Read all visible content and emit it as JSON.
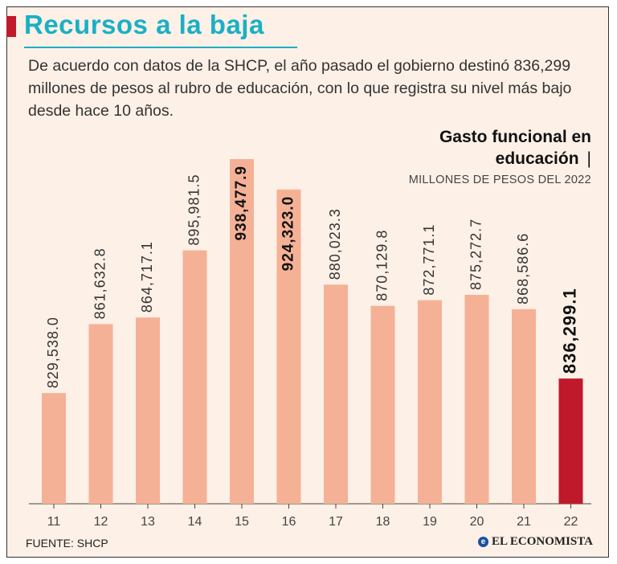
{
  "header": {
    "title": "Recursos a la baja",
    "subtitle": "De acuerdo con datos de la SHCP, el año pasado el gobierno destinó 836,299 millones de pesos al rubro de educación, con lo que registra su nivel más bajo desde hace 10 años."
  },
  "chart_title": {
    "line1": "Gasto funcional en",
    "line2": "educación",
    "separator": "|",
    "units": "MILLONES DE PESOS DEL 2022"
  },
  "footer": {
    "source": "FUENTE: SHCP",
    "logo": "EL ECONOMISTA"
  },
  "colors": {
    "accent": "#1ab0c4",
    "bar": "#f5b196",
    "highlight": "#c0192b",
    "background": "#fdf0e6"
  },
  "chart_data": {
    "type": "bar",
    "title": "Gasto funcional en educación",
    "ylabel": "Millones de pesos del 2022",
    "xlabel": "",
    "categories": [
      "11",
      "12",
      "13",
      "14",
      "15",
      "16",
      "17",
      "18",
      "19",
      "20",
      "21",
      "22"
    ],
    "values": [
      829538.0,
      861632.8,
      864717.1,
      895981.5,
      938477.9,
      924323.0,
      880023.3,
      870129.8,
      872771.1,
      875272.7,
      868586.6,
      836299.1
    ],
    "labels": [
      "829,538.0",
      "861,632.8",
      "864,717.1",
      "895,981.5",
      "938,477.9",
      "924,323.0",
      "880,023.3",
      "870,129.8",
      "872,771.1",
      "875,272.7",
      "868,586.6",
      "836,299.1"
    ],
    "highlight_index": 11,
    "label_inside_indices": [
      4,
      5
    ],
    "ylim": [
      800000,
      950000
    ],
    "grid": false
  }
}
